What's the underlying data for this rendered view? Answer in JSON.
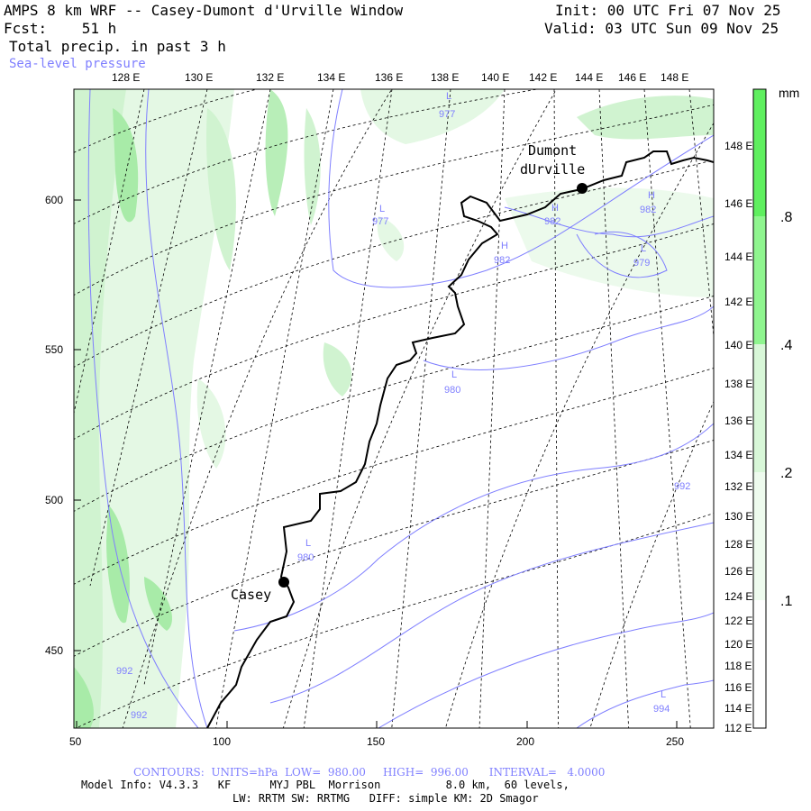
{
  "header": {
    "title": "AMPS 8 km WRF -- Casey-Dumont d'Urville Window",
    "forecast": "Fcst:    51 h",
    "field": "Total precip. in past 3 h",
    "overlay": "Sea-level pressure",
    "init": "Init: 00 UTC Fri 07 Nov 25",
    "valid": "Valid: 03 UTC Sun 09 Nov 25"
  },
  "top_longitude_labels": [
    "128 E",
    "130 E",
    "132 E",
    "134 E",
    "136 E",
    "138 E",
    "140 E",
    "142 E",
    "144 E",
    "146 E",
    "148 E"
  ],
  "right_longitude_labels": [
    "148 E",
    "146 E",
    "144 E",
    "142 E",
    "140 E",
    "138 E",
    "136 E",
    "134 E",
    "132 E",
    "130 E",
    "128 E",
    "126 E",
    "124 E",
    "122 E",
    "120 E",
    "118 E",
    "116 E",
    "114 E",
    "112 E"
  ],
  "y_axis_labels": [
    "600",
    "550",
    "500",
    "450"
  ],
  "x_axis_labels": [
    "50",
    "100",
    "150",
    "200",
    "250"
  ],
  "stations": [
    {
      "name_line1": "Dumont",
      "name_line2": "dUrville"
    },
    {
      "name_line1": "Casey",
      "name_line2": ""
    }
  ],
  "pressure_labels": [
    {
      "type": "L",
      "value": "977"
    },
    {
      "type": "L",
      "value": "977"
    },
    {
      "type": "H",
      "value": "982"
    },
    {
      "type": "H",
      "value": "982"
    },
    {
      "type": "H",
      "value": "982"
    },
    {
      "type": "L",
      "value": "979"
    },
    {
      "type": "L",
      "value": "980"
    },
    {
      "type": "L",
      "value": "980"
    },
    {
      "type": "",
      "value": "992"
    },
    {
      "type": "",
      "value": "992"
    },
    {
      "type": "",
      "value": "992"
    },
    {
      "type": "L",
      "value": "994"
    }
  ],
  "colorbar": {
    "unit": "mm",
    "labels": [
      ".8",
      ".4",
      ".2",
      ".1"
    ],
    "colors": [
      "#5fef5f",
      "#8ff58f",
      "#d8f7d8",
      "#ffffff"
    ]
  },
  "footer": {
    "contours": "CONTOURS:  UNITS=hPa  LOW=  980.00     HIGH=  996.00      INTERVAL=   4.0000",
    "model_line1": "Model Info: V4.3.3   KF      MYJ PBL  Morrison          8.0 km,  60 levels,",
    "model_line2": "LW: RRTM SW: RRTMG   DIFF: simple KM: 2D Smagor"
  },
  "colors": {
    "contour": "#7f7fff",
    "coast": "#000000",
    "precip_light": "#d8f7d8",
    "precip_mid": "#b2efb2",
    "precip_heavy": "#8fe58f"
  }
}
